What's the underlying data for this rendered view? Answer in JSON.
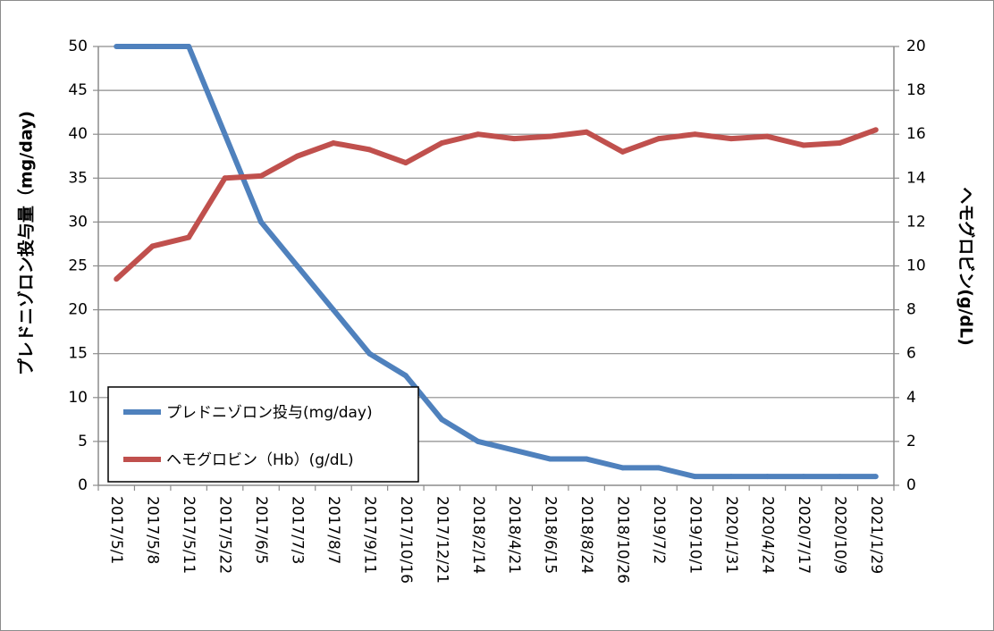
{
  "chart_data": {
    "type": "line",
    "x": [
      "2017/5/1",
      "2017/5/8",
      "2017/5/11",
      "2017/5/22",
      "2017/6/5",
      "2017/7/3",
      "2017/8/7",
      "2017/9/11",
      "2017/10/16",
      "2017/12/21",
      "2018/2/14",
      "2018/4/21",
      "2018/6/15",
      "2018/8/24",
      "2018/10/26",
      "2019/7/2",
      "2019/10/1",
      "2020/1/31",
      "2020/4/24",
      "2020/7/17",
      "2020/10/9",
      "2021/1/29"
    ],
    "y_left_label": "プレドニゾロン投与量（mg/day)",
    "y_right_label": "ヘモグロビン(g/dL)",
    "y_left_ticks": [
      "0",
      "5",
      "10",
      "15",
      "20",
      "25",
      "30",
      "35",
      "40",
      "45",
      "50"
    ],
    "y_right_ticks": [
      "0",
      "2",
      "4",
      "6",
      "8",
      "10",
      "12",
      "14",
      "16",
      "18",
      "20"
    ],
    "y_left_range": [
      0,
      50
    ],
    "y_right_range": [
      0,
      20
    ],
    "grid": true,
    "legend_position": "lower-left",
    "series": [
      {
        "name": "プレドニゾロン投与(mg/day)",
        "axis": "left",
        "color": "#4f81bd",
        "values": [
          50,
          50,
          50,
          40,
          30,
          25,
          20,
          15,
          12.5,
          7.5,
          5,
          4,
          3,
          3,
          2,
          2,
          1,
          1,
          1,
          1,
          1,
          1
        ]
      },
      {
        "name": "ヘモグロビン（Hb）(g/dL)",
        "axis": "right",
        "color": "#c0504d",
        "values": [
          9.4,
          10.9,
          11.3,
          14.0,
          14.1,
          15.0,
          15.6,
          15.3,
          14.7,
          15.6,
          16.0,
          15.8,
          15.9,
          16.1,
          15.2,
          15.8,
          16.0,
          15.8,
          15.9,
          15.5,
          15.6,
          16.2
        ]
      }
    ]
  }
}
